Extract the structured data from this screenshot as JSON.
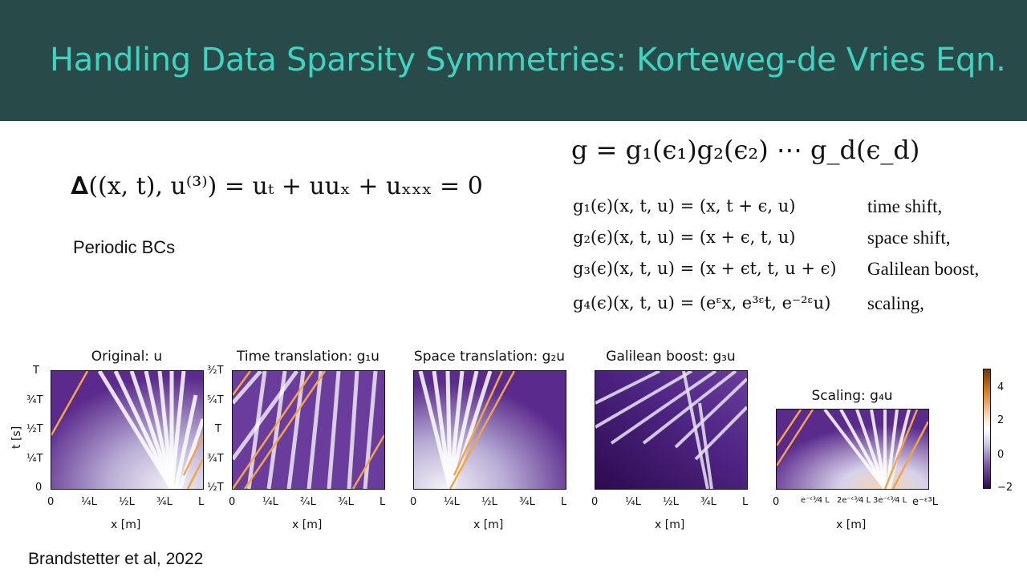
{
  "slide": {
    "title": "Handling Data Sparsity Symmetries: Korteweg-de Vries Eqn.",
    "pde": "𝚫((x, t), u⁽³⁾) = uₜ + uuₓ + uₓₓₓ = 0",
    "boundary_conditions": "Periodic BCs",
    "group_definition": "g = g₁(ϵ₁)g₂(ϵ₂) ⋯ g_d(ϵ_d)",
    "symmetries": [
      {
        "expr": "g₁(ϵ)(x, t, u) = (x, t + ϵ, u)",
        "name": "time shift,"
      },
      {
        "expr": "g₂(ϵ)(x, t, u) = (x + ϵ, t, u)",
        "name": "space shift,"
      },
      {
        "expr": "g₃(ϵ)(x, t, u) = (x + ϵt, t, u + ϵ)",
        "name": "Galilean boost,"
      },
      {
        "expr": "g₄(ϵ)(x, t, u) = (eᵋx, e³ᵋt, e⁻²ᵋu)",
        "name": "scaling,"
      }
    ],
    "citation": "Brandstetter et al, 2022"
  },
  "panels": {
    "titles": [
      "Original: u",
      "Time translation: g₁u",
      "Space translation: g₂u",
      "Galilean boost: g₃u",
      "Scaling: g₄u"
    ],
    "x_axis_label": "x [m]",
    "y_axis_label": "t [s]",
    "x_ticks_standard": [
      "0",
      "¼L",
      "½L",
      "¾L",
      "L"
    ],
    "x_ticks_time_translation": [
      "0",
      "¼L",
      "²⁄₄L",
      "¾L",
      "L"
    ],
    "x_ticks_scaling": [
      "0",
      "e⁻ᵋ³⁄4 L",
      "2e⁻ᵋ³⁄4 L",
      "3e⁻ᵋ³⁄4 L",
      "e⁻ᵋ³L"
    ],
    "y_ticks_original": [
      "T",
      "¾T",
      "½T",
      "¼T",
      "0"
    ],
    "y_ticks_time_translation": [
      "³⁄₂T",
      "⁵⁄₄T",
      "T",
      "¾T",
      "½T"
    ]
  },
  "colorbar": {
    "ticks": [
      "4",
      "2",
      "0",
      "−2"
    ],
    "colormap": "PuOr_r",
    "colors": {
      "high": "#b35806",
      "mid": "#ffffff",
      "low": "#2d004b"
    }
  },
  "theme": {
    "header_bg": "#284a48",
    "title_color": "#3fd3c2"
  }
}
